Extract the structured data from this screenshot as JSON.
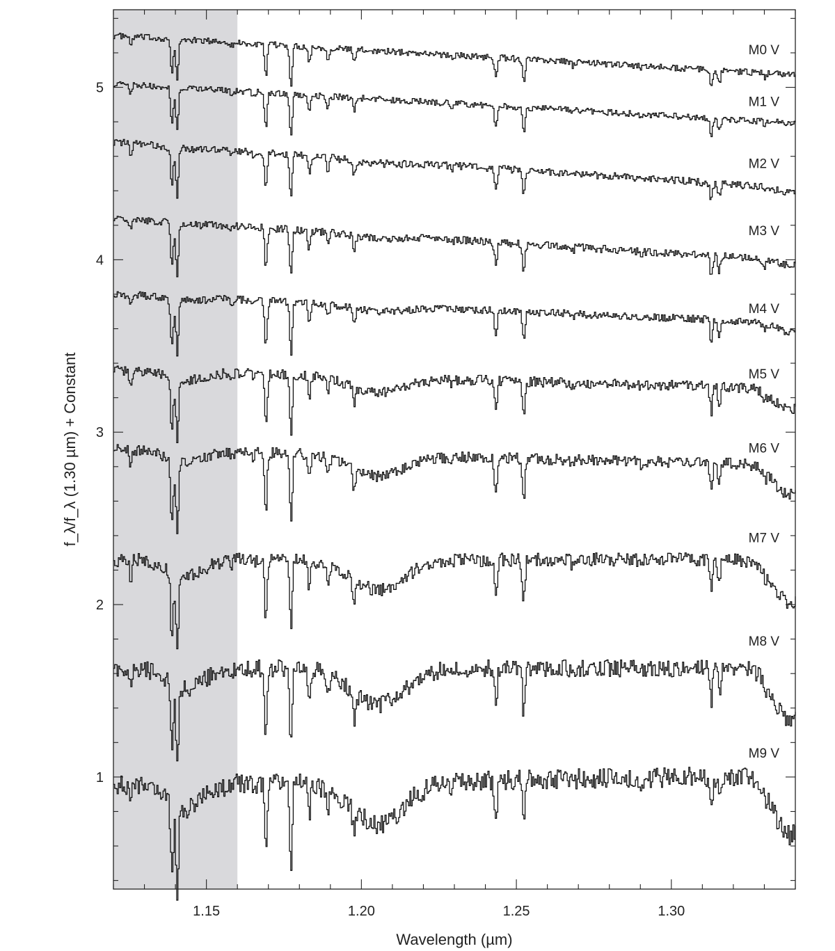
{
  "chart_data": {
    "type": "line",
    "xlabel": "Wavelength (µm)",
    "ylabel": "f_λ/f_λ (1.30 µm) + Constant",
    "xlim": [
      1.12,
      1.34
    ],
    "ylim": [
      0.35,
      5.45
    ],
    "xticks": [
      1.15,
      1.2,
      1.25,
      1.3
    ],
    "xtick_labels": [
      "1.15",
      "1.20",
      "1.25",
      "1.30"
    ],
    "yticks": [
      1,
      2,
      3,
      4,
      5
    ],
    "ytick_labels": [
      "1",
      "2",
      "3",
      "4",
      "5"
    ],
    "shaded_region": {
      "x": [
        1.12,
        1.16
      ],
      "color": "#d9d9dc"
    },
    "grid": false,
    "line_color": "#111111",
    "series": [
      {
        "name": "M0 V",
        "base": 5.3,
        "slope": 1.15,
        "depth": 1.0,
        "noise": 0.018,
        "band": 0.0,
        "label_y": 5.22
      },
      {
        "name": "M1 V",
        "base": 5.02,
        "slope": 1.15,
        "depth": 1.05,
        "noise": 0.018,
        "band": 0.0,
        "label_y": 4.92
      },
      {
        "name": "M2 V",
        "base": 4.68,
        "slope": 1.35,
        "depth": 1.1,
        "noise": 0.022,
        "band": 0.05,
        "label_y": 4.56
      },
      {
        "name": "M3 V",
        "base": 4.24,
        "slope": 1.25,
        "depth": 1.2,
        "noise": 0.022,
        "band": 0.05,
        "label_y": 4.17
      },
      {
        "name": "M4 V",
        "base": 3.8,
        "slope": 0.85,
        "depth": 1.3,
        "noise": 0.022,
        "band": 0.1,
        "label_y": 3.72
      },
      {
        "name": "M5 V",
        "base": 3.36,
        "slope": 0.55,
        "depth": 1.5,
        "noise": 0.03,
        "band": 0.25,
        "label_y": 3.34
      },
      {
        "name": "M6 V",
        "base": 2.9,
        "slope": 0.45,
        "depth": 1.75,
        "noise": 0.032,
        "band": 0.35,
        "label_y": 2.91
      },
      {
        "name": "M7 V",
        "base": 2.26,
        "slope": 0.0,
        "depth": 1.85,
        "noise": 0.04,
        "band": 0.5,
        "label_y": 2.39
      },
      {
        "name": "M8 V",
        "base": 1.63,
        "slope": 0.0,
        "depth": 1.95,
        "noise": 0.05,
        "band": 0.6,
        "label_y": 1.79
      },
      {
        "name": "M9 V",
        "base": 0.95,
        "slope": -0.3,
        "depth": 2.05,
        "noise": 0.06,
        "band": 0.7,
        "label_y": 1.14
      }
    ]
  }
}
